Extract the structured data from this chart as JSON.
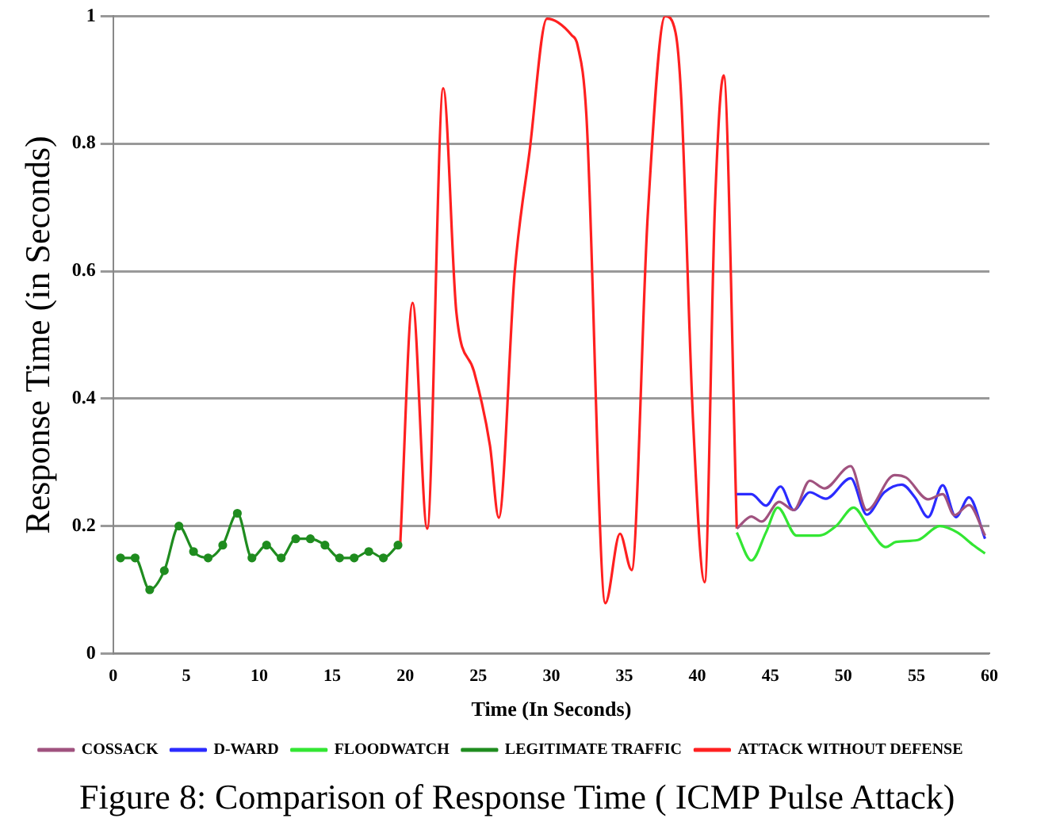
{
  "chart_data": {
    "type": "line",
    "title": "Figure 8: Comparison of Response Time ( ICMP Pulse Attack)",
    "xlabel": "Time (In Seconds)",
    "ylabel": "Response Time (in Seconds)",
    "xlim": [
      0,
      60
    ],
    "xticks": [
      0,
      5,
      10,
      15,
      20,
      25,
      30,
      35,
      40,
      45,
      50,
      55,
      60
    ],
    "ylim": [
      0,
      1
    ],
    "yticks": [
      0,
      0.2,
      0.4,
      0.6,
      0.8,
      1
    ],
    "grid": "y",
    "legend": "bottom",
    "marker": "none",
    "series": [
      {
        "name": "COSSACK",
        "color": "#a0527f",
        "x": [
          42.7,
          43.7,
          44.4,
          45.6,
          46.6,
          47.7,
          48.7,
          50.5,
          51.6,
          53.5,
          54.3,
          55.8,
          56.8,
          57.6,
          58.6,
          59.7
        ],
        "values": [
          0.196,
          0.215,
          0.207,
          0.238,
          0.225,
          0.271,
          0.259,
          0.294,
          0.225,
          0.28,
          0.276,
          0.242,
          0.25,
          0.217,
          0.233,
          0.185
        ]
      },
      {
        "name": "D-WARD",
        "color": "#2b2bff",
        "x": [
          42.7,
          43.7,
          44.7,
          45.7,
          46.6,
          47.7,
          48.8,
          50.5,
          51.6,
          52.8,
          54,
          54.9,
          55.8,
          56.8,
          57.7,
          58.6,
          59.7
        ],
        "values": [
          0.25,
          0.25,
          0.232,
          0.262,
          0.225,
          0.253,
          0.243,
          0.275,
          0.218,
          0.253,
          0.265,
          0.245,
          0.214,
          0.264,
          0.214,
          0.245,
          0.18
        ]
      },
      {
        "name": "FLOODWATCH",
        "color": "#33e633",
        "x": [
          42.7,
          43.7,
          44.7,
          45.5,
          46.8,
          48.3,
          49.5,
          50.7,
          51.8,
          52.9,
          53.6,
          55.1,
          56.6,
          57.8,
          58.9,
          59.7
        ],
        "values": [
          0.19,
          0.146,
          0.19,
          0.229,
          0.185,
          0.185,
          0.2,
          0.229,
          0.195,
          0.167,
          0.175,
          0.178,
          0.2,
          0.19,
          0.17,
          0.157
        ]
      },
      {
        "name": "LEGITIMATE TRAFFIC",
        "color": "#1f8c1f",
        "marker": "circle",
        "x": [
          0.5,
          1.5,
          2.5,
          3.5,
          4.5,
          5.5,
          6.5,
          7.5,
          8.5,
          9.5,
          10.5,
          11.5,
          12.5,
          13.5,
          14.5,
          15.5,
          16.5,
          17.5,
          18.5,
          19.5
        ],
        "values": [
          0.15,
          0.15,
          0.1,
          0.13,
          0.2,
          0.16,
          0.15,
          0.17,
          0.22,
          0.15,
          0.17,
          0.15,
          0.18,
          0.18,
          0.17,
          0.15,
          0.15,
          0.16,
          0.15,
          0.17
        ]
      },
      {
        "name": "ATTACK WITHOUT DEFENSE",
        "color": "#ff2020",
        "x": [
          19.65,
          20.5,
          21.5,
          22.6,
          23.5,
          24.7,
          25.8,
          26.4,
          27.5,
          28.5,
          29.7,
          31.4,
          31.8,
          32.4,
          33.7,
          34.7,
          35.5,
          36.6,
          37.8,
          38.5,
          38.9,
          39.7,
          40.5,
          41.2,
          41.8,
          42.7
        ],
        "values": [
          0.17,
          0.55,
          0.196,
          0.887,
          0.535,
          0.443,
          0.326,
          0.213,
          0.6,
          0.786,
          0.996,
          0.97,
          0.954,
          0.845,
          0.079,
          0.188,
          0.131,
          0.686,
          1.0,
          0.975,
          0.87,
          0.368,
          0.112,
          0.7,
          0.907,
          0.196
        ]
      }
    ]
  }
}
